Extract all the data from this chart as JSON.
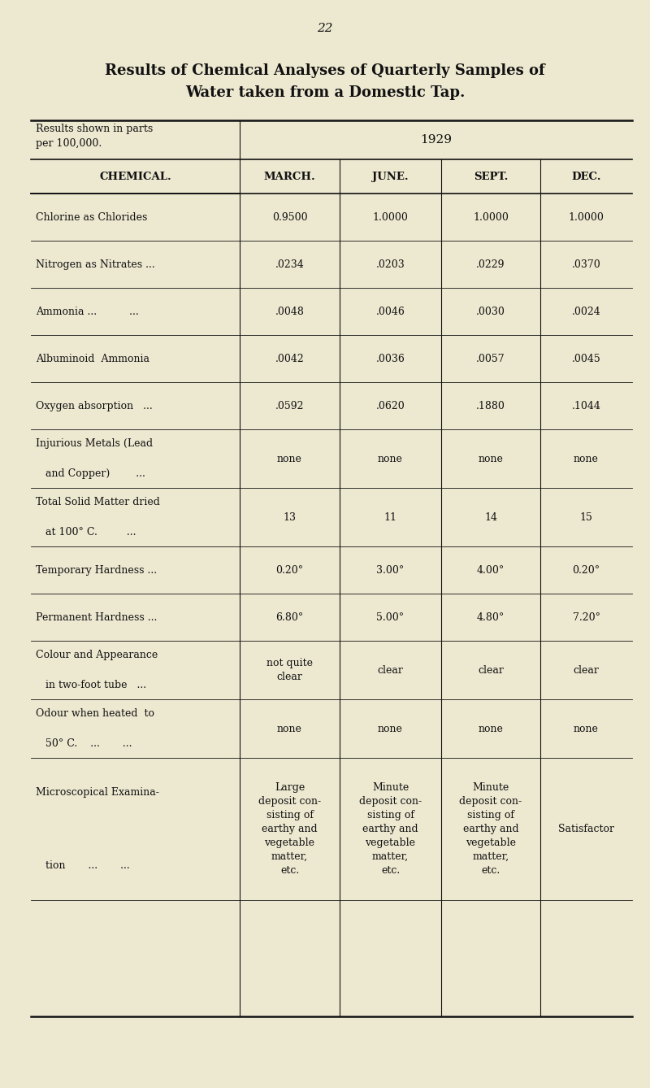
{
  "page_number": "22",
  "title_line1": "Results of Chemical Analyses of Quarterly Samples of",
  "title_line2": "Water taken from a Domestic Tap.",
  "year": "1929",
  "col_headers": [
    "CHEMICAL.",
    "MARCH.",
    "JUNE.",
    "SEPT.",
    "DEC."
  ],
  "rows": [
    {
      "chemical_lines": [
        "Chlorine as Chlorides"
      ],
      "data": [
        "0.9500",
        "1.0000",
        "1.0000",
        "1.0000"
      ]
    },
    {
      "chemical_lines": [
        "Nitrogen as Nitrates ..."
      ],
      "data": [
        ".0234",
        ".0203",
        ".0229",
        ".0370"
      ]
    },
    {
      "chemical_lines": [
        "Ammonia ...          ..."
      ],
      "data": [
        ".0048",
        ".0046",
        ".0030",
        ".0024"
      ]
    },
    {
      "chemical_lines": [
        "Albuminoid  Ammonia"
      ],
      "data": [
        ".0042",
        ".0036",
        ".0057",
        ".0045"
      ]
    },
    {
      "chemical_lines": [
        "Oxygen absorption   ..."
      ],
      "data": [
        ".0592",
        ".0620",
        ".1880",
        ".1044"
      ]
    },
    {
      "chemical_lines": [
        "Injurious Metals (Lead",
        "   and Copper)        ..."
      ],
      "data": [
        "none",
        "none",
        "none",
        "none"
      ]
    },
    {
      "chemical_lines": [
        "Total Solid Matter dried",
        "   at 100° C.         ..."
      ],
      "data": [
        "13",
        "11",
        "14",
        "15"
      ]
    },
    {
      "chemical_lines": [
        "Temporary Hardness ..."
      ],
      "data": [
        "0.20°",
        "3.00°",
        "4.00°",
        "0.20°"
      ]
    },
    {
      "chemical_lines": [
        "Permanent Hardness ..."
      ],
      "data": [
        "6.80°",
        "5.00°",
        "4.80°",
        "7.20°"
      ]
    },
    {
      "chemical_lines": [
        "Colour and Appearance",
        "   in two-foot tube   ..."
      ],
      "data": [
        "not quite\nclear",
        "clear",
        "clear",
        "clear"
      ]
    },
    {
      "chemical_lines": [
        "Odour when heated  to",
        "   50° C.    ...       ..."
      ],
      "data": [
        "none",
        "none",
        "none",
        "none"
      ]
    },
    {
      "chemical_lines": [
        "Microscopical Examina-",
        "   tion       ...       ..."
      ],
      "data": [
        "Large\ndeposit con-\nsisting of\nearthy and\nvegetable\nmatter,\netc.",
        "Minute\ndeposit con-\nsisting of\nearthy and\nvegetable\nmatter,\netc.",
        "Minute\ndeposit con-\nsisting of\nearthy and\nvegetable\nmatter,\netc.",
        "Satisfactor"
      ]
    }
  ],
  "bg_color": "#ede8d0",
  "text_color": "#111111",
  "line_color": "#111111"
}
